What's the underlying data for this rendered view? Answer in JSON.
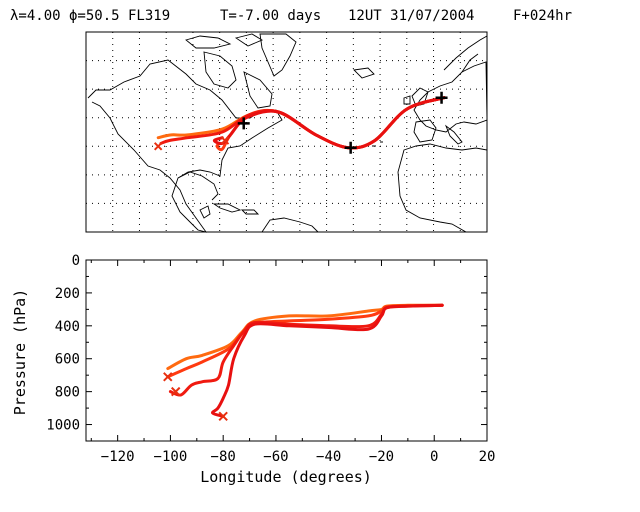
{
  "header": {
    "params": "λ=4.00 ϕ=50.5 FL319",
    "time_offset": "T=-7.00 days",
    "valid_time": "12UT 31/07/2004",
    "forecast": "F+024hr"
  },
  "colors": {
    "traj": [
      "#ff6a10",
      "#ff3a10",
      "#f01a10",
      "#e81010",
      "#d80000"
    ],
    "marker_cross": "#000000",
    "start_x": "#e83010"
  },
  "chart_data": [
    {
      "type": "map",
      "projection": "cylindrical",
      "lon_range": [
        -130,
        20
      ],
      "lat_range": [
        10,
        80
      ],
      "grid": true,
      "trajectories": [
        {
          "lon": [
            4,
            -10,
            -22,
            -32,
            -44,
            -58,
            -69,
            -79,
            -92,
            -98,
            -103
          ],
          "lat": [
            57,
            53,
            42,
            39.5,
            44,
            52,
            51,
            46,
            44,
            44,
            43
          ]
        },
        {
          "lon": [
            4,
            -10,
            -22,
            -32,
            -44,
            -58,
            -69,
            -76,
            -79,
            -81,
            -80
          ],
          "lat": [
            57,
            53,
            42,
            39.5,
            44,
            52,
            51,
            44,
            39,
            40,
            41
          ]
        },
        {
          "lon": [
            4,
            -10,
            -22,
            -32,
            -44,
            -58,
            -69,
            -79,
            -92,
            -99,
            -102
          ],
          "lat": [
            57,
            53,
            42,
            39.5,
            44,
            52,
            51,
            45,
            43,
            42,
            41
          ]
        },
        {
          "lon": [
            4,
            -10,
            -22,
            -32,
            -44,
            -58,
            -70,
            -76,
            -79,
            -82,
            -79
          ],
          "lat": [
            57,
            53,
            42,
            39.5,
            44,
            52,
            50,
            44,
            41,
            42,
            43
          ]
        }
      ],
      "day_markers": [
        {
          "lon": 3,
          "lat": 57
        },
        {
          "lon": -31,
          "lat": 39.5
        },
        {
          "lon": -71,
          "lat": 48
        }
      ],
      "start_markers": [
        {
          "lon": -103,
          "lat": 40
        },
        {
          "lon": -78,
          "lat": 42
        }
      ]
    },
    {
      "type": "line",
      "title": "",
      "xlabel": "Longitude  (degrees)",
      "ylabel": "Pressure  (hPa)",
      "xlim": [
        -132,
        20
      ],
      "ylim": [
        1100,
        0
      ],
      "xticks": [
        -120,
        -100,
        -80,
        -60,
        -40,
        -20,
        0,
        20
      ],
      "yticks": [
        0,
        200,
        400,
        600,
        800,
        1000
      ],
      "grid": false,
      "series": [
        {
          "x": [
            3,
            -10,
            -18,
            -20,
            -25,
            -40,
            -55,
            -68,
            -73,
            -78,
            -88,
            -94,
            -101
          ],
          "y": [
            275,
            275,
            280,
            300,
            310,
            340,
            340,
            370,
            440,
            520,
            580,
            600,
            660
          ]
        },
        {
          "x": [
            3,
            -10,
            -18,
            -20,
            -25,
            -40,
            -55,
            -68,
            -73,
            -78,
            -88,
            -94,
            -101
          ],
          "y": [
            275,
            278,
            285,
            310,
            340,
            360,
            370,
            385,
            450,
            540,
            620,
            660,
            710
          ]
        },
        {
          "x": [
            3,
            -10,
            -18,
            -20,
            -25,
            -40,
            -55,
            -68,
            -72,
            -76,
            -80,
            -82,
            -88,
            -92,
            -96,
            -100
          ],
          "y": [
            275,
            280,
            290,
            330,
            400,
            400,
            390,
            380,
            430,
            520,
            620,
            720,
            740,
            760,
            820,
            800
          ]
        },
        {
          "x": [
            3,
            -10,
            -18,
            -20,
            -25,
            -40,
            -55,
            -68,
            -72,
            -76,
            -78,
            -80,
            -82,
            -84,
            -80
          ],
          "y": [
            275,
            280,
            290,
            340,
            420,
            410,
            400,
            390,
            460,
            600,
            760,
            840,
            900,
            930,
            950
          ]
        }
      ],
      "start_markers": [
        {
          "x": -101,
          "y": 710
        },
        {
          "x": -98,
          "y": 800
        },
        {
          "x": -80,
          "y": 950
        }
      ]
    }
  ]
}
